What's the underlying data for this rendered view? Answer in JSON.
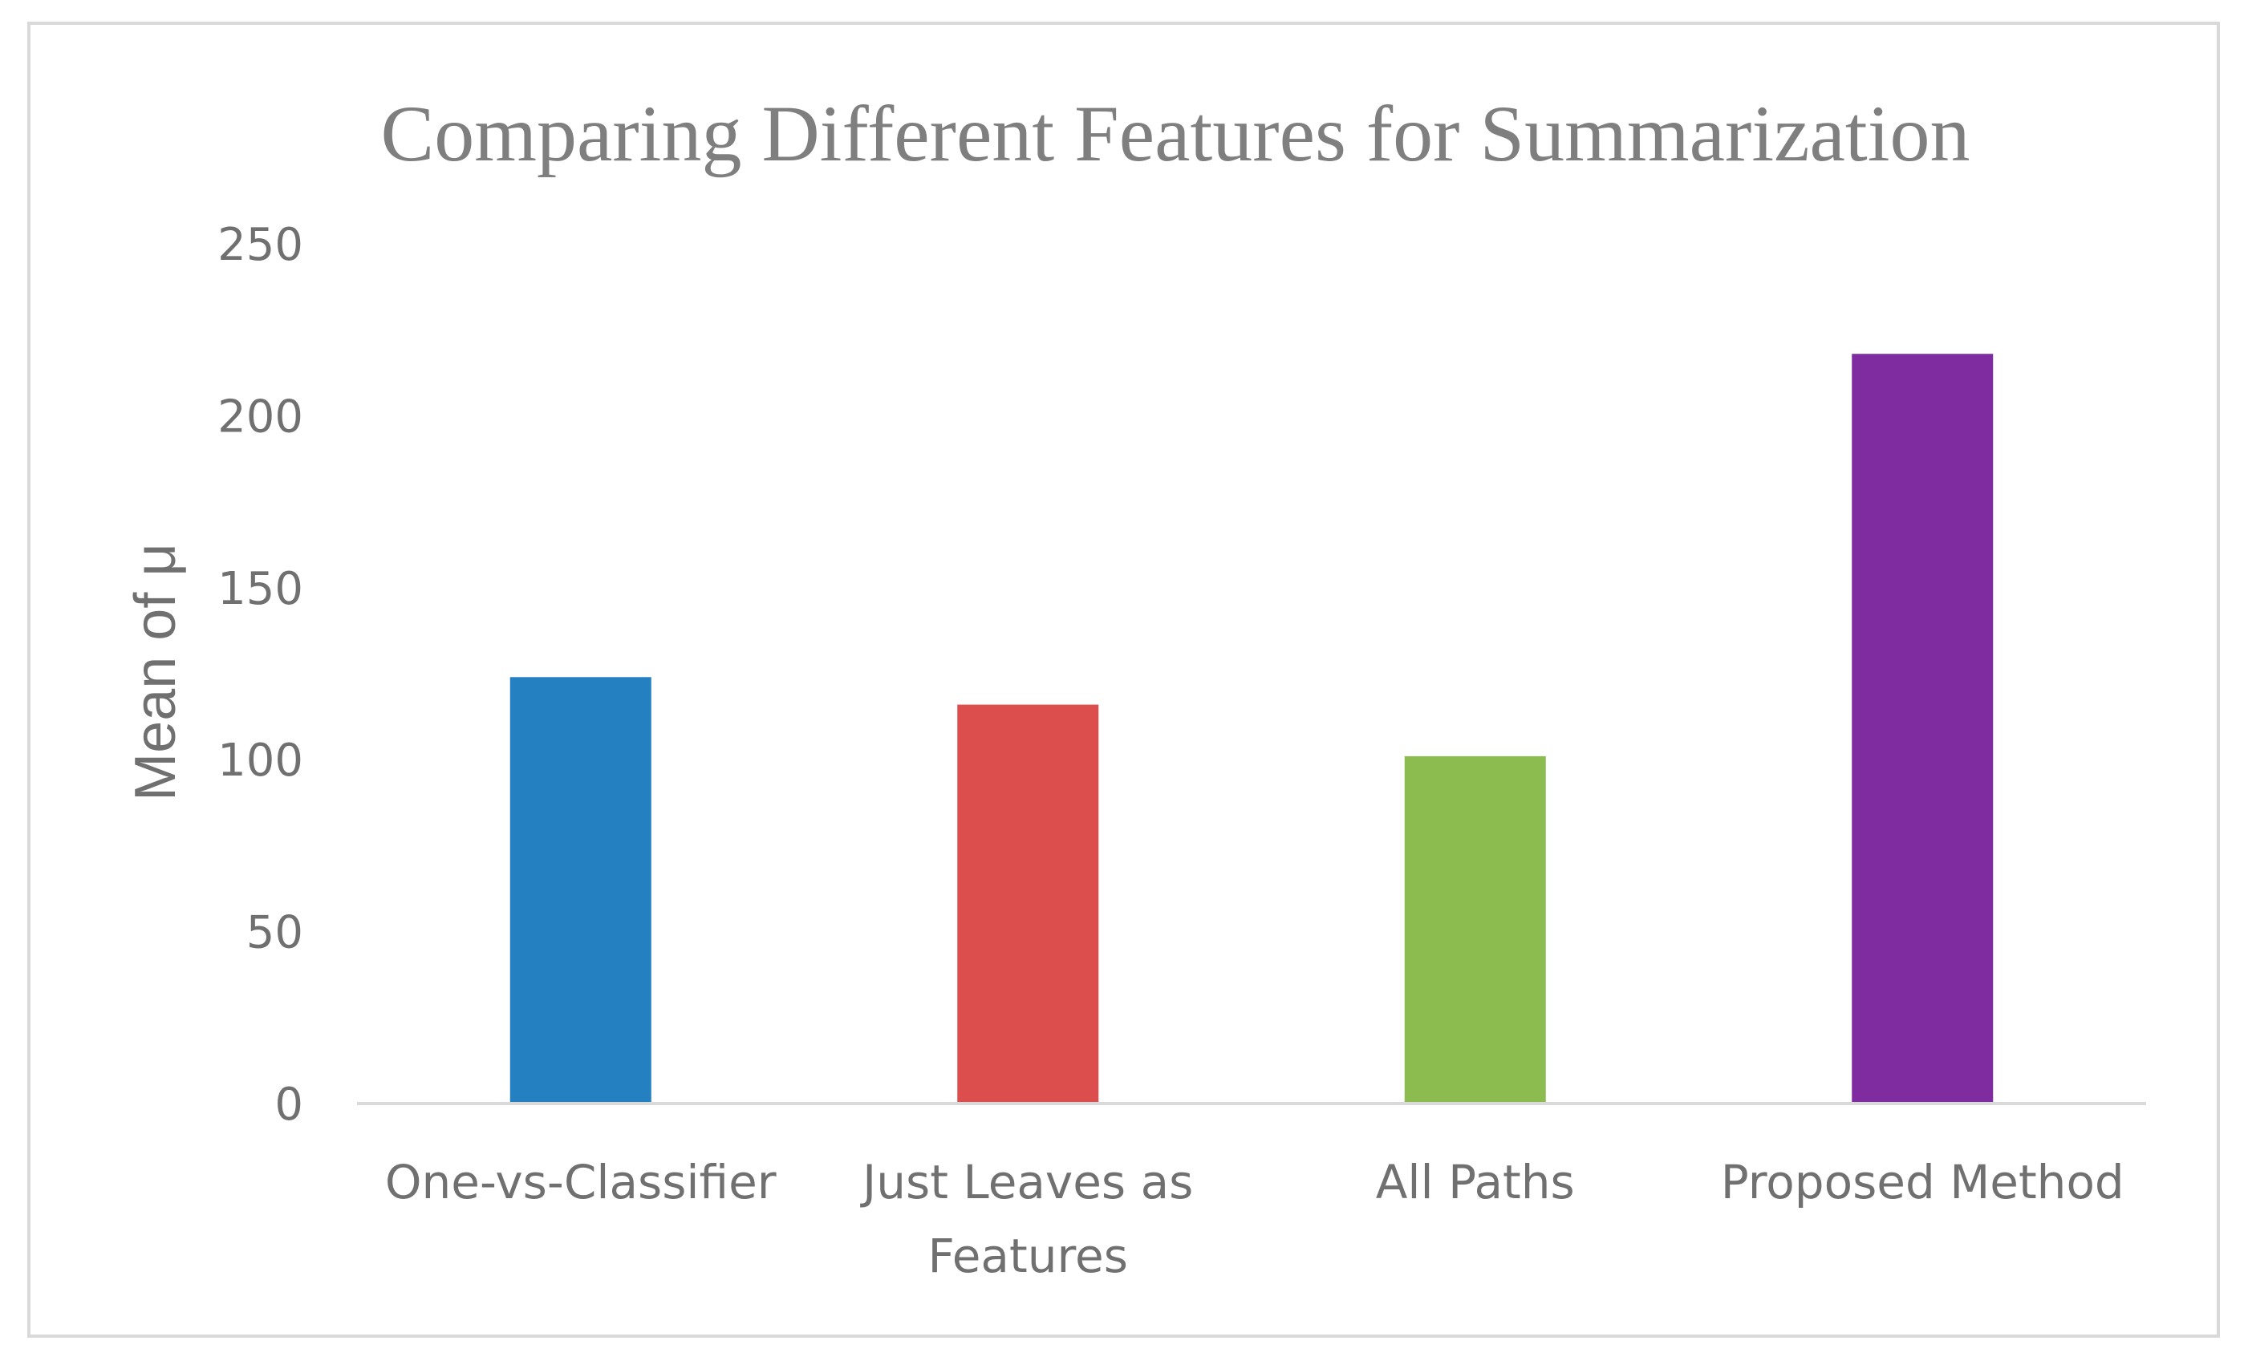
{
  "chart_data": {
    "type": "bar",
    "title": "Comparing Different Features for Summarization",
    "xlabel": "",
    "ylabel": "Mean of μ",
    "categories": [
      "One-vs-Classifier",
      "Just Leaves as Features",
      "All Paths",
      "Proposed Method"
    ],
    "category_lines": [
      [
        "One-vs-Classifier"
      ],
      [
        "Just Leaves as",
        "Features"
      ],
      [
        "All Paths"
      ],
      [
        "Proposed Method"
      ]
    ],
    "values": [
      124,
      116,
      101,
      218
    ],
    "colors": [
      "#2480c0",
      "#dc4e4e",
      "#8cbb50",
      "#7f2ca0"
    ],
    "ylim": [
      0,
      250
    ],
    "yticks": [
      0,
      50,
      100,
      150,
      200,
      250
    ],
    "grid": false,
    "legend": "none"
  }
}
